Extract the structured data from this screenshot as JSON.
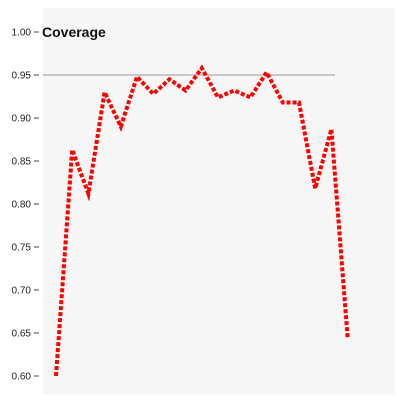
{
  "chart_data": {
    "type": "line",
    "title": "Coverage",
    "xlabel": "",
    "ylabel": "",
    "ylim": [
      0.6,
      1.0
    ],
    "y_ticks": [
      "0.60",
      "0.65",
      "0.70",
      "0.75",
      "0.80",
      "0.85",
      "0.90",
      "0.95",
      "1.00"
    ],
    "x_ticks": [],
    "grid": false,
    "reference_line": {
      "y": 0.95,
      "color": "#999999"
    },
    "series": [
      {
        "color": "#ff0000",
        "style": "dotted",
        "x": [
          1,
          2,
          3,
          4,
          5,
          6,
          7,
          8,
          9,
          10,
          11,
          12,
          13,
          14,
          15,
          16,
          17,
          18,
          19,
          20
        ],
        "values": [
          0.6,
          0.863,
          0.812,
          0.93,
          0.89,
          0.948,
          0.928,
          0.945,
          0.932,
          0.958,
          0.924,
          0.932,
          0.924,
          0.953,
          0.918,
          0.918,
          0.818,
          0.887,
          0.645,
          null
        ]
      }
    ],
    "colors": {
      "background": "#f7f7f7",
      "axis_text": "#222222"
    }
  }
}
